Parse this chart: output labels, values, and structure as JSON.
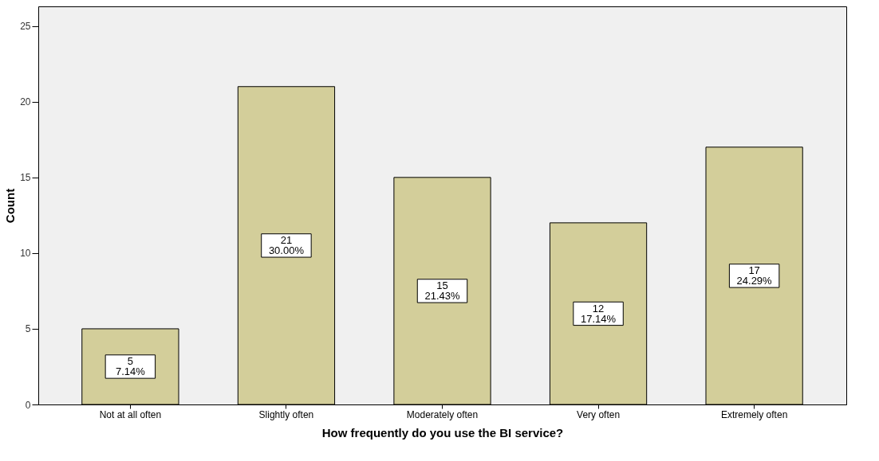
{
  "chart_data": {
    "type": "bar",
    "xlabel": "How frequently do you use the BI service?",
    "ylabel": "Count",
    "categories": [
      "Not at all often",
      "Slightly often",
      "Moderately often",
      "Very often",
      "Extremely often"
    ],
    "values": [
      5,
      21,
      15,
      12,
      17
    ],
    "value_labels": [
      "5\n7.14%",
      "21\n30.00%",
      "15\n21.43%",
      "12\n17.14%",
      "17\n24.29%"
    ],
    "color": "#d3ce9a",
    "ylim": [
      0,
      26.3
    ],
    "yticks": [
      0,
      5,
      10,
      15,
      20,
      25
    ],
    "grid": false
  }
}
